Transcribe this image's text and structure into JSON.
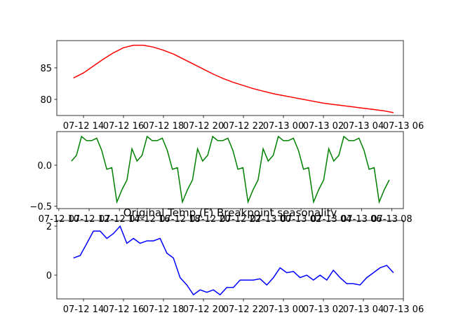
{
  "chart_data": [
    {
      "type": "line",
      "color": "#ff0000",
      "x": [
        "07-12 13:30",
        "07-12 14:00",
        "07-12 14:30",
        "07-12 15:00",
        "07-12 15:30",
        "07-12 16:00",
        "07-12 16:30",
        "07-12 17:00",
        "07-12 17:30",
        "07-12 18:00",
        "07-12 18:30",
        "07-12 19:00",
        "07-12 19:30",
        "07-12 20:00",
        "07-12 20:30",
        "07-12 21:00",
        "07-12 21:30",
        "07-12 22:00",
        "07-12 22:30",
        "07-12 23:00",
        "07-12 23:30",
        "07-13 00:00",
        "07-13 00:30",
        "07-13 01:00",
        "07-13 01:30",
        "07-13 02:00",
        "07-13 02:30",
        "07-13 03:00",
        "07-13 03:30",
        "07-13 04:00",
        "07-13 04:30",
        "07-13 05:00",
        "07-13 05:30"
      ],
      "values": [
        83.4,
        84.2,
        85.3,
        86.4,
        87.4,
        88.2,
        88.6,
        88.6,
        88.3,
        87.8,
        87.2,
        86.4,
        85.6,
        84.8,
        84.0,
        83.3,
        82.7,
        82.2,
        81.7,
        81.3,
        80.9,
        80.6,
        80.3,
        80.0,
        79.7,
        79.4,
        79.2,
        79.0,
        78.8,
        78.6,
        78.4,
        78.2,
        77.9
      ],
      "xlim": [
        "07-12 12:40",
        "07-13 06:00"
      ],
      "ylim": [
        77.44,
        89.33
      ],
      "xticks": [
        "07-12 14",
        "07-12 16",
        "07-12 18",
        "07-12 20",
        "07-12 22",
        "07-13 00",
        "07-13 02",
        "07-13 04",
        "07-13 06"
      ],
      "yticks": [
        80,
        85
      ]
    },
    {
      "type": "line",
      "color": "#008000",
      "x": [
        "07-12 10:50",
        "07-12 11:10",
        "07-12 11:30",
        "07-12 11:50",
        "07-12 12:10",
        "07-12 12:30",
        "07-12 12:50",
        "07-12 13:10",
        "07-12 13:30",
        "07-12 13:50",
        "07-12 14:10",
        "07-12 14:30",
        "07-12 14:50",
        "07-12 15:10",
        "07-12 15:30",
        "07-12 15:50",
        "07-12 16:10",
        "07-12 16:30",
        "07-12 16:50",
        "07-12 17:10",
        "07-12 17:30",
        "07-12 17:50",
        "07-12 18:10",
        "07-12 18:30",
        "07-12 18:50",
        "07-12 19:10",
        "07-12 19:30",
        "07-12 19:50",
        "07-12 20:10",
        "07-12 20:30",
        "07-12 20:50",
        "07-12 21:10",
        "07-12 21:30",
        "07-12 21:50",
        "07-12 22:10",
        "07-12 22:30",
        "07-12 22:50",
        "07-12 23:10",
        "07-12 23:30",
        "07-12 23:50",
        "07-13 00:10",
        "07-13 00:30",
        "07-13 00:50",
        "07-13 01:10",
        "07-13 01:30",
        "07-13 01:50",
        "07-13 02:10",
        "07-13 02:30",
        "07-13 02:50",
        "07-13 03:10",
        "07-13 03:30",
        "07-13 03:50",
        "07-13 04:10",
        "07-13 04:30",
        "07-13 04:50",
        "07-13 05:10",
        "07-13 05:30",
        "07-13 05:50",
        "07-13 06:10",
        "07-13 06:30",
        "07-13 06:50",
        "07-13 07:10",
        "07-13 07:30",
        "07-13 07:50"
      ],
      "values": [
        0.05,
        0.12,
        0.35,
        0.3,
        0.3,
        0.33,
        0.18,
        -0.05,
        -0.03,
        -0.45,
        -0.3,
        -0.18,
        0.2,
        0.05,
        0.12,
        0.35,
        0.3,
        0.3,
        0.33,
        0.18,
        -0.05,
        -0.03,
        -0.45,
        -0.3,
        -0.18,
        0.2,
        0.05,
        0.12,
        0.35,
        0.3,
        0.3,
        0.33,
        0.18,
        -0.05,
        -0.03,
        -0.45,
        -0.3,
        -0.18,
        0.2,
        0.05,
        0.12,
        0.35,
        0.3,
        0.3,
        0.33,
        0.18,
        -0.05,
        -0.03,
        -0.45,
        -0.3,
        -0.18,
        0.2,
        0.05,
        0.12,
        0.35,
        0.3,
        0.3,
        0.33,
        0.18,
        -0.05,
        -0.03,
        -0.45,
        -0.3,
        -0.18
      ],
      "xlim": [
        "07-12 09:52",
        "07-13 08:46"
      ],
      "ylim": [
        -0.53,
        0.41
      ],
      "xticks": [
        "07-12 10",
        "07-12 12",
        "07-12 14",
        "07-12 16",
        "07-12 18",
        "07-12 20",
        "07-12 22",
        "07-13 00",
        "07-13 02",
        "07-13 04",
        "07-13 06",
        "07-13 08"
      ],
      "yticks": [
        {
          "value": -0.5,
          "label": "−0.5"
        },
        {
          "value": 0,
          "label": "0.0"
        }
      ]
    },
    {
      "type": "line",
      "color": "#0000ff",
      "title": "Original Temp (F) Breakpoint seasonality",
      "x": [
        "07-12 13:30",
        "07-12 13:50",
        "07-12 14:10",
        "07-12 14:30",
        "07-12 14:50",
        "07-12 15:10",
        "07-12 15:30",
        "07-12 15:50",
        "07-12 16:10",
        "07-12 16:30",
        "07-12 16:50",
        "07-12 17:10",
        "07-12 17:30",
        "07-12 17:50",
        "07-12 18:10",
        "07-12 18:30",
        "07-12 18:50",
        "07-12 19:10",
        "07-12 19:30",
        "07-12 19:50",
        "07-12 20:10",
        "07-12 20:30",
        "07-12 20:50",
        "07-12 21:10",
        "07-12 21:30",
        "07-12 21:50",
        "07-12 22:10",
        "07-12 22:30",
        "07-12 22:50",
        "07-12 23:10",
        "07-12 23:30",
        "07-12 23:50",
        "07-13 00:10",
        "07-13 00:30",
        "07-13 00:50",
        "07-13 01:10",
        "07-13 01:30",
        "07-13 01:50",
        "07-13 02:10",
        "07-13 02:30",
        "07-13 02:50",
        "07-13 03:10",
        "07-13 03:30",
        "07-13 03:50",
        "07-13 04:10",
        "07-13 04:30",
        "07-13 04:50",
        "07-13 05:10",
        "07-13 05:30"
      ],
      "values": [
        0.7,
        0.8,
        1.3,
        1.8,
        1.8,
        1.5,
        1.7,
        2.0,
        1.3,
        1.5,
        1.3,
        1.4,
        1.4,
        1.5,
        0.9,
        0.7,
        -0.1,
        -0.4,
        -0.8,
        -0.6,
        -0.7,
        -0.6,
        -0.8,
        -0.5,
        -0.5,
        -0.2,
        -0.2,
        -0.2,
        -0.15,
        -0.4,
        -0.1,
        0.3,
        0.1,
        0.15,
        -0.1,
        0.0,
        -0.2,
        0.0,
        -0.2,
        0.2,
        -0.1,
        -0.35,
        -0.35,
        -0.4,
        -0.1,
        0.1,
        0.3,
        0.4,
        0.1
      ],
      "xlim": [
        "07-12 12:40",
        "07-13 06:00"
      ],
      "ylim": [
        -0.97,
        2.23
      ],
      "xticks": [
        "07-12 14",
        "07-12 16",
        "07-12 18",
        "07-12 20",
        "07-12 22",
        "07-13 00",
        "07-13 02",
        "07-13 04",
        "07-13 06"
      ],
      "yticks": [
        0,
        2
      ]
    }
  ]
}
